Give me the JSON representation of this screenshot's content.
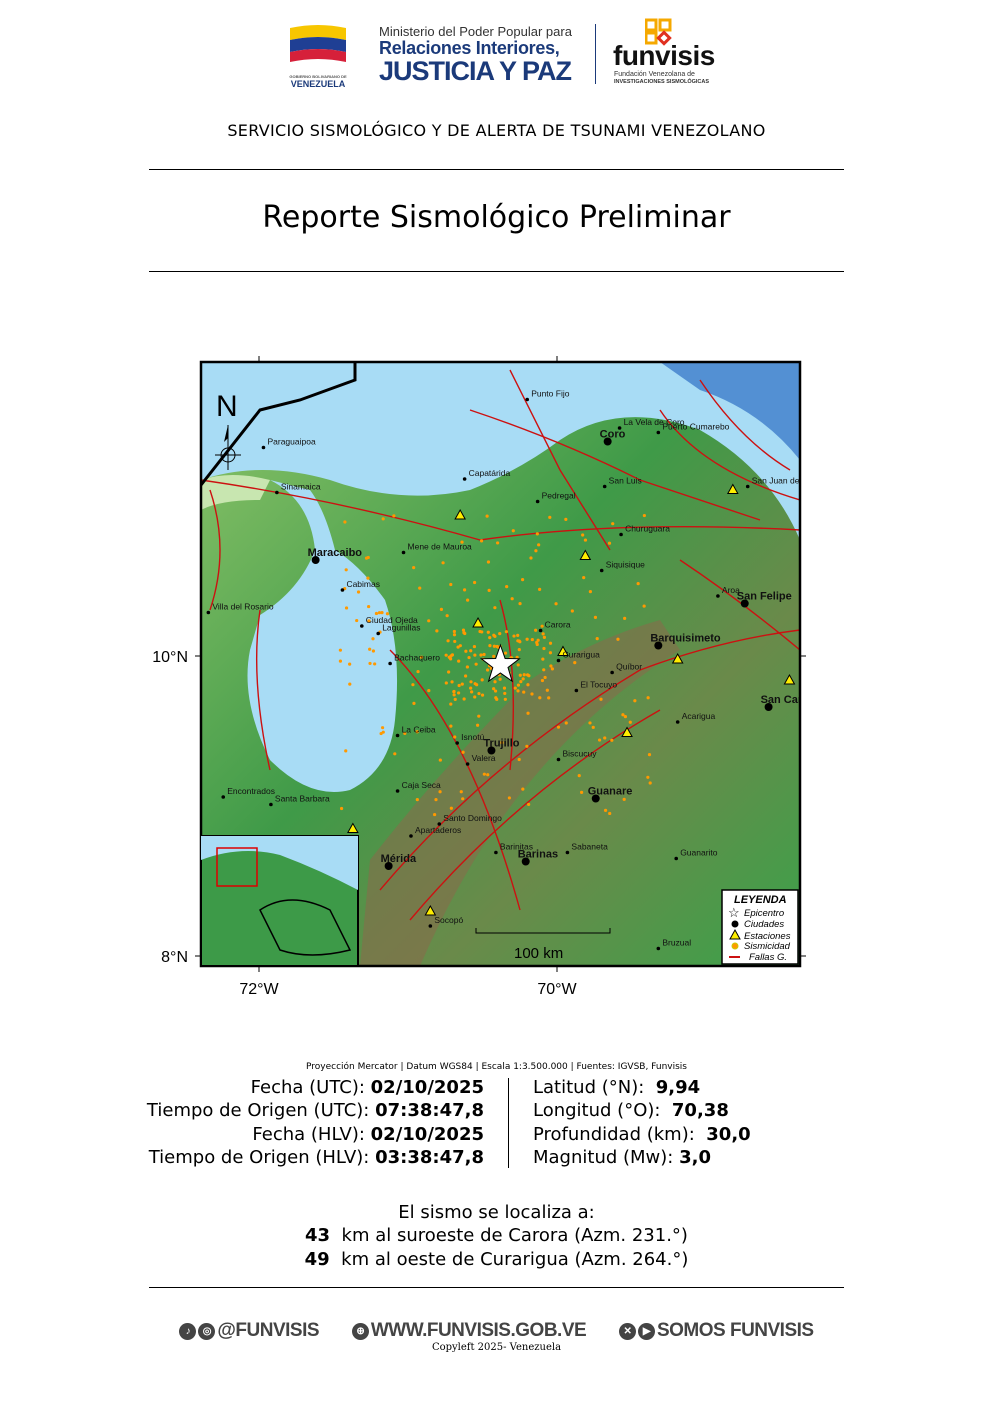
{
  "header": {
    "gov_logo_text": "VENEZUELA",
    "gov_logo_small": "GOBIERNO BOLIVARIANO DE",
    "ministry_line1": "Ministerio del Poder Popular para",
    "ministry_line2": "Relaciones Interiores,",
    "ministry_line3": "JUSTICIA Y PAZ",
    "funvisis_name": "funvisis",
    "funvisis_sub1": "Fundación Venezolana de",
    "funvisis_sub2": "INVESTIGACIONES SISMOLÓGICAS",
    "service": "SERVICIO SISMOLÓGICO Y DE ALERTA DE TSUNAMI VENEZOLANO"
  },
  "title": "Reporte Sismológico Preliminar",
  "map": {
    "north_label": "N",
    "lat_ticks": [
      {
        "lat": 10,
        "label": "10°N"
      },
      {
        "lat": 8,
        "label": "8°N"
      }
    ],
    "lon_ticks": [
      {
        "lon": -72,
        "label": "72°W"
      },
      {
        "lon": -70,
        "label": "70°W"
      }
    ],
    "scale_label": "100 km",
    "epicenter": {
      "lat": 9.94,
      "lon": -70.38
    },
    "cities": [
      {
        "name": "Punto Fijo",
        "lon": -70.2,
        "lat": 11.71,
        "major": false
      },
      {
        "name": "La Vela de Coro",
        "lon": -69.58,
        "lat": 11.52,
        "major": false
      },
      {
        "name": "Puerto Cumarebo",
        "lon": -69.32,
        "lat": 11.49,
        "major": false
      },
      {
        "name": "Coro",
        "lon": -69.66,
        "lat": 11.43,
        "major": true
      },
      {
        "name": "San Luis",
        "lon": -69.68,
        "lat": 11.13,
        "major": false
      },
      {
        "name": "San Juan de",
        "lon": -68.72,
        "lat": 11.13,
        "major": false
      },
      {
        "name": "Paraguaipoa",
        "lon": -71.97,
        "lat": 11.39,
        "major": false
      },
      {
        "name": "Sinamaica",
        "lon": -71.88,
        "lat": 11.09,
        "major": false
      },
      {
        "name": "Capatárida",
        "lon": -70.62,
        "lat": 11.18,
        "major": false
      },
      {
        "name": "Pedregal",
        "lon": -70.13,
        "lat": 11.03,
        "major": false
      },
      {
        "name": "Maracaibo",
        "lon": -71.62,
        "lat": 10.64,
        "major": true
      },
      {
        "name": "Mene de Mauroa",
        "lon": -71.03,
        "lat": 10.69,
        "major": false
      },
      {
        "name": "Churuguara",
        "lon": -69.57,
        "lat": 10.81,
        "major": false
      },
      {
        "name": "Cabimas",
        "lon": -71.44,
        "lat": 10.44,
        "major": false
      },
      {
        "name": "Siquisique",
        "lon": -69.7,
        "lat": 10.57,
        "major": false
      },
      {
        "name": "Aroa",
        "lon": -68.92,
        "lat": 10.4,
        "major": false
      },
      {
        "name": "San Felipe",
        "lon": -68.74,
        "lat": 10.35,
        "major": true
      },
      {
        "name": "Villa del Rosario",
        "lon": -72.34,
        "lat": 10.29,
        "major": false
      },
      {
        "name": "Ciudad Ojeda",
        "lon": -71.31,
        "lat": 10.2,
        "major": false
      },
      {
        "name": "Lagunillas",
        "lon": -71.2,
        "lat": 10.15,
        "major": false
      },
      {
        "name": "Carora",
        "lon": -70.11,
        "lat": 10.17,
        "major": false
      },
      {
        "name": "Barquisimeto",
        "lon": -69.32,
        "lat": 10.07,
        "major": true
      },
      {
        "name": "Bachaquero",
        "lon": -71.12,
        "lat": 9.95,
        "major": false
      },
      {
        "name": "Curarigua",
        "lon": -69.99,
        "lat": 9.97,
        "major": false
      },
      {
        "name": "Quíbor",
        "lon": -69.63,
        "lat": 9.89,
        "major": false
      },
      {
        "name": "El Tocuyo",
        "lon": -69.87,
        "lat": 9.77,
        "major": false
      },
      {
        "name": "San Carlos",
        "lon": -68.58,
        "lat": 9.66,
        "major": true
      },
      {
        "name": "Acarigua",
        "lon": -69.19,
        "lat": 9.56,
        "major": false
      },
      {
        "name": "La Ceiba",
        "lon": -71.07,
        "lat": 9.47,
        "major": false
      },
      {
        "name": "Trujillo",
        "lon": -70.44,
        "lat": 9.37,
        "major": true
      },
      {
        "name": "Isnotú",
        "lon": -70.67,
        "lat": 9.42,
        "major": false
      },
      {
        "name": "Valera",
        "lon": -70.6,
        "lat": 9.28,
        "major": false
      },
      {
        "name": "Biscucuy",
        "lon": -69.99,
        "lat": 9.31,
        "major": false
      },
      {
        "name": "Caja Seca",
        "lon": -71.07,
        "lat": 9.1,
        "major": false
      },
      {
        "name": "Encontrados",
        "lon": -72.24,
        "lat": 9.06,
        "major": false
      },
      {
        "name": "Santa Barbara",
        "lon": -71.92,
        "lat": 9.01,
        "major": false
      },
      {
        "name": "Guanare",
        "lon": -69.74,
        "lat": 9.05,
        "major": true
      },
      {
        "name": "Santo Domingo",
        "lon": -70.79,
        "lat": 8.88,
        "major": false
      },
      {
        "name": "Apartaderos",
        "lon": -70.98,
        "lat": 8.8,
        "major": false
      },
      {
        "name": "Barinitas",
        "lon": -70.41,
        "lat": 8.69,
        "major": false
      },
      {
        "name": "Sabaneta",
        "lon": -69.93,
        "lat": 8.69,
        "major": false
      },
      {
        "name": "Guanarito",
        "lon": -69.2,
        "lat": 8.65,
        "major": false
      },
      {
        "name": "Mérida",
        "lon": -71.13,
        "lat": 8.6,
        "major": true
      },
      {
        "name": "Barinas",
        "lon": -70.21,
        "lat": 8.63,
        "major": true
      },
      {
        "name": "Socopó",
        "lon": -70.85,
        "lat": 8.2,
        "major": false
      },
      {
        "name": "Bruzual",
        "lon": -69.32,
        "lat": 8.05,
        "major": false
      }
    ],
    "stations": [
      {
        "lon": -70.65,
        "lat": 10.94
      },
      {
        "lon": -69.81,
        "lat": 10.67
      },
      {
        "lon": -70.53,
        "lat": 10.22
      },
      {
        "lon": -69.96,
        "lat": 10.03
      },
      {
        "lon": -69.19,
        "lat": 9.98
      },
      {
        "lon": -68.82,
        "lat": 11.11
      },
      {
        "lon": -68.44,
        "lat": 9.84
      },
      {
        "lon": -69.53,
        "lat": 9.49
      },
      {
        "lon": -71.37,
        "lat": 8.85
      },
      {
        "lon": -70.85,
        "lat": 8.3
      }
    ],
    "legend": {
      "title": "LEYENDA",
      "items": [
        "Epicentro",
        "Ciudades",
        "Estaciones",
        "Sismicidad",
        "Fallas G."
      ]
    },
    "colors": {
      "epicenter": "#ffffff",
      "station": "#ffee00",
      "seismicity": "#ff9900",
      "faults": "#cc1111",
      "sea": "#a8dcf5",
      "land": "#4caa4c"
    }
  },
  "info": {
    "projection": "Proyección Mercator | Datum WGS84 | Escala 1:3.500.000 | Fuentes: IGVSB, Funvisis",
    "left": [
      {
        "label": "Fecha (UTC):",
        "value": "02/10/2025"
      },
      {
        "label": "Tiempo de Origen (UTC):",
        "value": "07:38:47,8"
      },
      {
        "label": "Fecha (HLV):",
        "value": "02/10/2025"
      },
      {
        "label": "Tiempo de Origen (HLV):",
        "value": "03:38:47,8"
      }
    ],
    "right": [
      {
        "label": "Latitud (°N):",
        "value": "9,94"
      },
      {
        "label": "Longitud (°O):",
        "value": "70,38"
      },
      {
        "label": "Profundidad (km):",
        "value": "30,0"
      },
      {
        "label": "Magnitud (Mw):",
        "value": "3,0"
      }
    ]
  },
  "location": {
    "heading": "El sismo se localiza a:",
    "refs": [
      {
        "km": "43",
        "text": "km al suroeste de Carora (Azm. 231.°)"
      },
      {
        "km": "49",
        "text": "km al oeste de Curarigua (Azm. 264.°)"
      }
    ]
  },
  "footer": {
    "social": "@FUNVISIS",
    "website": "WWW.FUNVISIS.GOB.VE",
    "channel": "SOMOS FUNVISIS",
    "copyleft": "Copyleft 2025- Venezuela"
  }
}
